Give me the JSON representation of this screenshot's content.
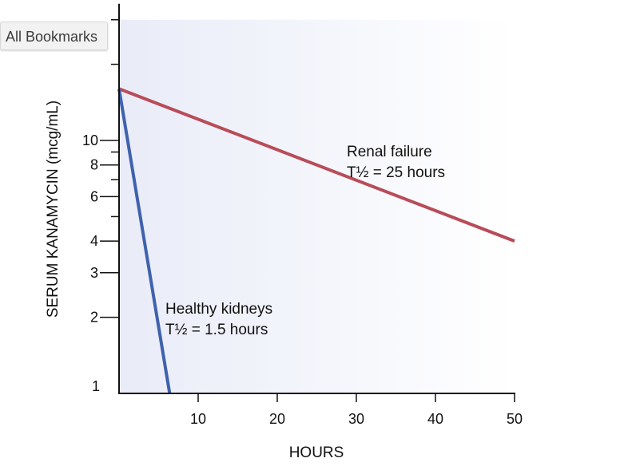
{
  "toolbar": {
    "bookmarks_label": "All Bookmarks"
  },
  "chart_data": {
    "type": "line",
    "title": "",
    "xlabel": "HOURS",
    "ylabel": "SERUM KANAMYCIN (mcg/mL)",
    "x_scale": "linear",
    "y_scale": "log",
    "xlim": [
      0,
      50
    ],
    "ylim": [
      1,
      30
    ],
    "x_ticks": [
      10,
      20,
      30,
      40,
      50
    ],
    "x_tick_labels": [
      "10",
      "20",
      "30",
      "40",
      "50"
    ],
    "y_ticks": [
      1,
      2,
      3,
      4,
      6,
      8,
      10
    ],
    "y_tick_labels": [
      "1",
      "2",
      "3",
      "4",
      "6",
      "8",
      "10"
    ],
    "y_minor_ticks": [
      5,
      7,
      9
    ],
    "series": [
      {
        "name": "Renal failure",
        "half_life_label": "T½ = 25 hours",
        "x": [
          0,
          50
        ],
        "y": [
          16,
          4
        ],
        "color": "#b84c58"
      },
      {
        "name": "Healthy kidneys",
        "half_life_label": "T½ = 1.5 hours",
        "x": [
          0,
          6.4
        ],
        "y": [
          16,
          1
        ],
        "color": "#3f62ad"
      }
    ],
    "annotations": [
      {
        "label": "Renal failure",
        "sub": "T½ = 25 hours",
        "series": 0
      },
      {
        "label": "Healthy kidneys",
        "sub": "T½ = 1.5 hours",
        "series": 1
      }
    ],
    "background_gradient": [
      "#e9ecf8",
      "#ffffff"
    ]
  }
}
